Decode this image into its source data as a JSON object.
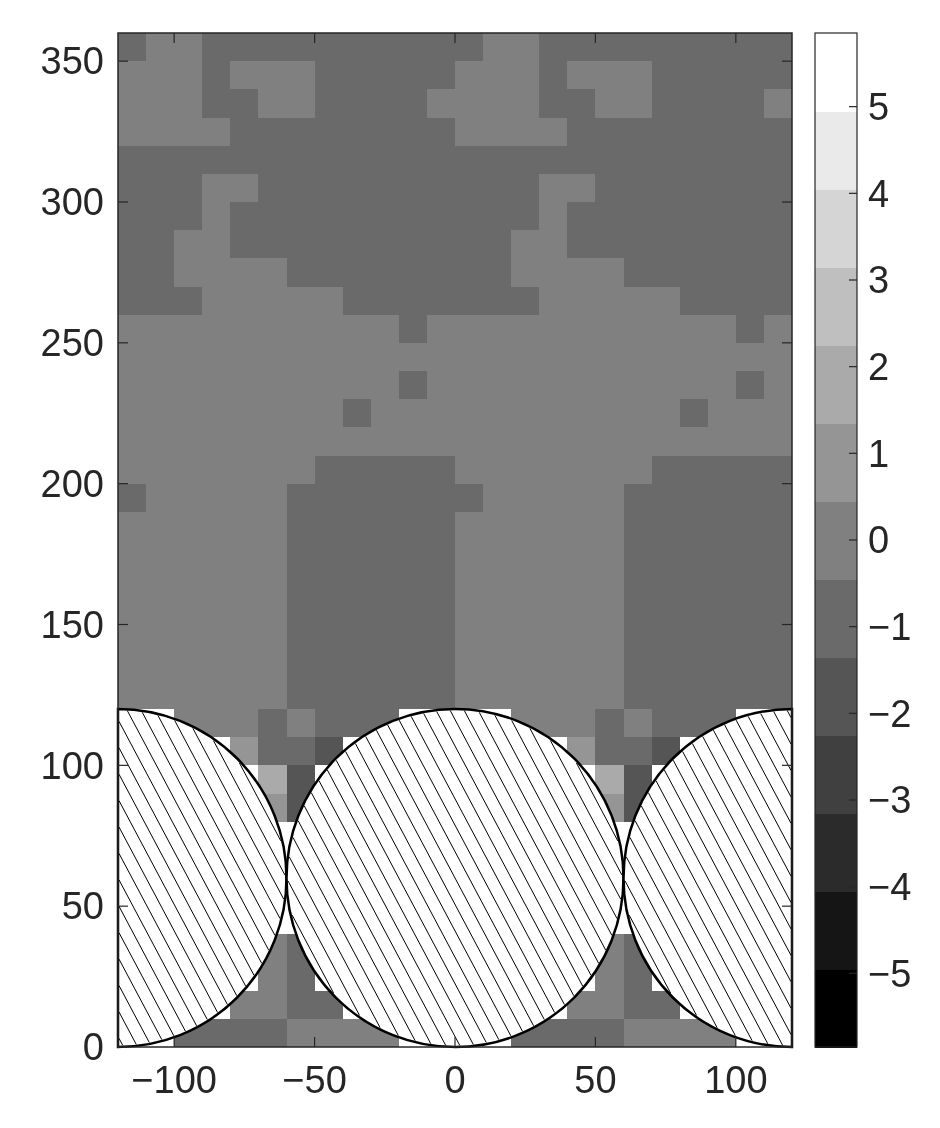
{
  "chart_data": {
    "type": "scatter",
    "marker": "square",
    "xlim": [
      -120,
      120
    ],
    "ylim": [
      0,
      360
    ],
    "xticks": [
      -100,
      -50,
      0,
      50,
      100
    ],
    "yticks": [
      0,
      50,
      100,
      150,
      200,
      250,
      300,
      350
    ],
    "clim": [
      -5.85,
      5.85
    ],
    "cticks": [
      -5,
      -4,
      -3,
      -2,
      -1,
      0,
      1,
      2,
      3,
      4,
      5
    ],
    "x": [
      -115,
      -105,
      -95,
      -85,
      -75,
      -65,
      -55,
      -45,
      -35,
      -25,
      -15,
      -5,
      5,
      15,
      25,
      35,
      45,
      55,
      65,
      75,
      85,
      95,
      105,
      115,
      -115,
      -105,
      -95,
      -85,
      -75,
      -65,
      -55,
      -45,
      -35,
      -25,
      -15,
      -5,
      5,
      15,
      25,
      35,
      45,
      55,
      65,
      75,
      85,
      95,
      105,
      115,
      -115,
      -105,
      -95,
      -85,
      -75,
      -65,
      -55,
      -45,
      -35,
      -25,
      -15,
      -5,
      5,
      15,
      25,
      35,
      45,
      55,
      65,
      75,
      85,
      95,
      105,
      115,
      -115,
      -105,
      -95,
      -85,
      -75,
      -65,
      -55,
      -45,
      -35,
      -25,
      -15,
      -5,
      5,
      15,
      25,
      35,
      45,
      55,
      65,
      75,
      85,
      95,
      105,
      115,
      -115,
      -105,
      -95,
      -85,
      -75,
      -65,
      -55,
      -45,
      -35,
      -25,
      -15,
      -5,
      5,
      15,
      25,
      35,
      45,
      55,
      65,
      75,
      85,
      95,
      105,
      115,
      -115,
      -105,
      -95,
      -85,
      -75,
      -65,
      -55,
      -45,
      -35,
      -25,
      -15,
      -5,
      5,
      15,
      25,
      35,
      45,
      55,
      65,
      75,
      85,
      95,
      105,
      115,
      -115,
      -105,
      -95,
      -85,
      -75,
      -65,
      -55,
      -45,
      -35,
      -25,
      -15,
      -5,
      5,
      15,
      25,
      35,
      45,
      55,
      65,
      75,
      85,
      95,
      105,
      115,
      -115,
      -105,
      -95,
      -85,
      -75,
      -65,
      -55,
      -45,
      -35,
      -25,
      -15,
      -5,
      5,
      15,
      25,
      35,
      45,
      55,
      65,
      75,
      85,
      95,
      105,
      115,
      -115,
      -105,
      -95,
      -85,
      -75,
      -65,
      -55,
      -45,
      -35,
      -25,
      -15,
      -5,
      5,
      15,
      25,
      35,
      45,
      55,
      65,
      75,
      85,
      95,
      105,
      115,
      -115,
      -105,
      -95,
      -85,
      -75,
      -65,
      -55,
      -45,
      -35,
      -25,
      -15,
      -5,
      5,
      15,
      25,
      35,
      45,
      55,
      65,
      75,
      85,
      95,
      105,
      115,
      -115,
      -105,
      -95,
      -85,
      -75,
      -65,
      -55,
      -45,
      -35,
      -25,
      -15,
      -5,
      5,
      15,
      25,
      35,
      45,
      55,
      65,
      75,
      85,
      95,
      105,
      115,
      -115,
      -105,
      -95,
      -85,
      -75,
      -65,
      -55,
      -45,
      -35,
      -25,
      -15,
      -5,
      5,
      15,
      25,
      35,
      45,
      55,
      65,
      75,
      85,
      95,
      105,
      115,
      -115,
      -105,
      -95,
      -85,
      -75,
      -65,
      -55,
      -45,
      -35,
      -25,
      -15,
      -5,
      5,
      15,
      25,
      35,
      45,
      55,
      65,
      75,
      85,
      95,
      105,
      115,
      -115,
      -105,
      -95,
      -85,
      -75,
      -65,
      -55,
      -45,
      -35,
      -25,
      -15,
      -5,
      5,
      15,
      25,
      35,
      45,
      55,
      65,
      75,
      85,
      95,
      105,
      115,
      -115,
      -105,
      -95,
      -85,
      -75,
      -65,
      -55,
      -45,
      -35,
      -25,
      -15,
      -5,
      5,
      15,
      25,
      35,
      45,
      55,
      65,
      75,
      85,
      95,
      105,
      115,
      -115,
      -105,
      -95,
      -85,
      -75,
      -65,
      -55,
      -45,
      -35,
      -25,
      -15,
      -5,
      5,
      15,
      25,
      35,
      45,
      55,
      65,
      75,
      85,
      95,
      105,
      115,
      -115,
      -105,
      -95,
      -85,
      -75,
      -65,
      -55,
      -45,
      -35,
      -25,
      -15,
      -5,
      5,
      15,
      25,
      35,
      45,
      55,
      65,
      75,
      85,
      95,
      105,
      115,
      -115,
      -105,
      -95,
      -85,
      -75,
      -65,
      -55,
      -45,
      -35,
      -25,
      -15,
      -5,
      5,
      15,
      25,
      35,
      45,
      55,
      65,
      75,
      85,
      95,
      105,
      115,
      -115,
      -105,
      -95,
      -85,
      -75,
      -65,
      -55,
      -45,
      -35,
      -25,
      -15,
      -5,
      5,
      15,
      25,
      35,
      45,
      55,
      65,
      75,
      85,
      95,
      105,
      115,
      -115,
      -105,
      -95,
      -85,
      -75,
      -65,
      -55,
      -45,
      -35,
      -25,
      -15,
      -5,
      5,
      15,
      25,
      35,
      45,
      55,
      65,
      75,
      85,
      95,
      105,
      115,
      -115,
      -105,
      -95,
      -85,
      -75,
      -65,
      -55,
      -45,
      -35,
      -25,
      -15,
      -5,
      5,
      15,
      25,
      35,
      45,
      55,
      65,
      75,
      85,
      95,
      105,
      115,
      -115,
      -105,
      -95,
      -85,
      -75,
      -65,
      -55,
      -45,
      -35,
      -25,
      -15,
      -5,
      5,
      15,
      25,
      35,
      45,
      55,
      65,
      75,
      85,
      95,
      105,
      115,
      -115,
      -105,
      -95,
      -85,
      -75,
      -65,
      -55,
      -45,
      -35,
      -25,
      -15,
      -5,
      5,
      15,
      25,
      35,
      45,
      55,
      65,
      75,
      85,
      95,
      105,
      115,
      -115,
      -105,
      -95,
      -85,
      -75,
      -65,
      -55,
      -45,
      -35,
      -25,
      -15,
      -5,
      5,
      15,
      25,
      35,
      45,
      55,
      65,
      75,
      85,
      95,
      105,
      115,
      -95,
      -85,
      -75,
      -65,
      -55,
      -45,
      -35,
      -25,
      25,
      35,
      45,
      55,
      65,
      75,
      85,
      95,
      -75,
      -65,
      -55,
      -45,
      45,
      55,
      65,
      75,
      -65,
      -55,
      55,
      65,
      -65,
      -55,
      55,
      65,
      -65,
      -55,
      55,
      65,
      -65,
      -55,
      55,
      65,
      -75,
      -65,
      -55,
      -45,
      45,
      55,
      65,
      75,
      -95,
      -85,
      -75,
      -65,
      -55,
      -45,
      -35,
      -25,
      25,
      35,
      45,
      55,
      65,
      75,
      85,
      95
    ],
    "values": [
      355,
      355,
      355,
      355,
      355,
      355,
      355,
      355,
      355,
      355,
      355,
      355,
      355,
      355,
      355,
      355,
      355,
      355,
      355,
      355,
      355,
      355,
      355,
      355,
      345,
      345,
      345,
      345,
      345,
      345,
      345,
      345,
      345,
      345,
      345,
      345,
      345,
      345,
      345,
      345,
      345,
      345,
      345,
      345,
      345,
      345,
      345,
      345,
      335,
      335,
      335,
      335,
      335,
      335,
      335,
      335,
      335,
      335,
      335,
      335,
      335,
      335,
      335,
      335,
      335,
      335,
      335,
      335,
      335,
      335,
      335,
      335,
      325,
      325,
      325,
      325,
      325,
      325,
      325,
      325,
      325,
      325,
      325,
      325,
      325,
      325,
      325,
      325,
      325,
      325,
      325,
      325,
      325,
      325,
      325,
      325,
      315,
      315,
      315,
      315,
      315,
      315,
      315,
      315,
      315,
      315,
      315,
      315,
      315,
      315,
      315,
      315,
      315,
      315,
      315,
      315,
      315,
      315,
      315,
      315,
      305,
      305,
      305,
      305,
      305,
      305,
      305,
      305,
      305,
      305,
      305,
      305,
      305,
      305,
      305,
      305,
      305,
      305,
      305,
      305,
      305,
      305,
      305,
      305,
      295,
      295,
      295,
      295,
      295,
      295,
      295,
      295,
      295,
      295,
      295,
      295,
      295,
      295,
      295,
      295,
      295,
      295,
      295,
      295,
      295,
      295,
      295,
      295,
      285,
      285,
      285,
      285,
      285,
      285,
      285,
      285,
      285,
      285,
      285,
      285,
      285,
      285,
      285,
      285,
      285,
      285,
      285,
      285,
      285,
      285,
      285,
      285,
      275,
      275,
      275,
      275,
      275,
      275,
      275,
      275,
      275,
      275,
      275,
      275,
      275,
      275,
      275,
      275,
      275,
      275,
      275,
      275,
      275,
      275,
      275,
      275,
      265,
      265,
      265,
      265,
      265,
      265,
      265,
      265,
      265,
      265,
      265,
      265,
      265,
      265,
      265,
      265,
      265,
      265,
      265,
      265,
      265,
      265,
      265,
      265,
      255,
      255,
      255,
      255,
      255,
      255,
      255,
      255,
      255,
      255,
      255,
      255,
      255,
      255,
      255,
      255,
      255,
      255,
      255,
      255,
      255,
      255,
      255,
      255,
      245,
      245,
      245,
      245,
      245,
      245,
      245,
      245,
      245,
      245,
      245,
      245,
      245,
      245,
      245,
      245,
      245,
      245,
      245,
      245,
      245,
      245,
      245,
      245,
      235,
      235,
      235,
      235,
      235,
      235,
      235,
      235,
      235,
      235,
      235,
      235,
      235,
      235,
      235,
      235,
      235,
      235,
      235,
      235,
      235,
      235,
      235,
      235,
      225,
      225,
      225,
      225,
      225,
      225,
      225,
      225,
      225,
      225,
      225,
      225,
      225,
      225,
      225,
      225,
      225,
      225,
      225,
      225,
      225,
      225,
      225,
      225,
      215,
      215,
      215,
      215,
      215,
      215,
      215,
      215,
      215,
      215,
      215,
      215,
      215,
      215,
      215,
      215,
      215,
      215,
      215,
      215,
      215,
      215,
      215,
      215,
      205,
      205,
      205,
      205,
      205,
      205,
      205,
      205,
      205,
      205,
      205,
      205,
      205,
      205,
      205,
      205,
      205,
      205,
      205,
      205,
      205,
      205,
      205,
      205,
      195,
      195,
      195,
      195,
      195,
      195,
      195,
      195,
      195,
      195,
      195,
      195,
      195,
      195,
      195,
      195,
      195,
      195,
      195,
      195,
      195,
      195,
      195,
      195,
      185,
      185,
      185,
      185,
      185,
      185,
      185,
      185,
      185,
      185,
      185,
      185,
      185,
      185,
      185,
      185,
      185,
      185,
      185,
      185,
      185,
      185,
      185,
      185,
      175,
      175,
      175,
      175,
      175,
      175,
      175,
      175,
      175,
      175,
      175,
      175,
      175,
      175,
      175,
      175,
      175,
      175,
      175,
      175,
      175,
      175,
      175,
      175,
      165,
      165,
      165,
      165,
      165,
      165,
      165,
      165,
      165,
      165,
      165,
      165,
      165,
      165,
      165,
      165,
      165,
      165,
      165,
      165,
      165,
      165,
      165,
      165,
      155,
      155,
      155,
      155,
      155,
      155,
      155,
      155,
      155,
      155,
      155,
      155,
      155,
      155,
      155,
      155,
      155,
      155,
      155,
      155,
      155,
      155,
      155,
      155,
      145,
      145,
      145,
      145,
      145,
      145,
      145,
      145,
      145,
      145,
      145,
      145,
      145,
      145,
      145,
      145,
      145,
      145,
      145,
      145,
      145,
      145,
      145,
      145,
      135,
      135,
      135,
      135,
      135,
      135,
      135,
      135,
      135,
      135,
      135,
      135,
      135,
      135,
      135,
      135,
      135,
      135,
      135,
      135,
      135,
      135,
      135,
      135,
      125,
      125,
      125,
      125,
      125,
      125,
      125,
      125,
      125,
      125,
      125,
      125,
      125,
      125,
      125,
      125,
      125,
      125,
      125,
      125,
      125,
      125,
      125,
      125,
      115,
      115,
      115,
      115,
      115,
      115,
      115,
      115,
      115,
      115,
      115,
      115,
      115,
      115,
      115,
      115,
      105,
      105,
      105,
      105,
      105,
      105,
      105,
      105,
      95,
      95,
      95,
      95,
      85,
      85,
      85,
      85,
      35,
      35,
      35,
      35,
      25,
      25,
      25,
      25,
      15,
      15,
      15,
      15,
      15,
      15,
      15,
      15,
      5,
      5,
      5,
      5,
      5,
      5,
      5,
      5,
      5,
      5,
      5,
      5,
      5,
      5,
      5,
      5
    ],
    "cvalues": [
      -1,
      0,
      0,
      -1,
      -1,
      -1,
      -1,
      -1,
      -1,
      -1,
      -1,
      -1,
      -1,
      0,
      0,
      -1,
      -1,
      -1,
      -1,
      -1,
      -1,
      -1,
      -1,
      -1,
      0,
      0,
      0,
      -1,
      0,
      0,
      0,
      -1,
      -1,
      -1,
      -1,
      -1,
      0,
      0,
      0,
      -1,
      0,
      0,
      0,
      -1,
      -1,
      -1,
      -1,
      -1,
      0,
      0,
      0,
      -1,
      -1,
      0,
      0,
      -1,
      -1,
      -1,
      -1,
      0,
      0,
      0,
      0,
      -1,
      -1,
      0,
      0,
      -1,
      -1,
      -1,
      -1,
      0,
      0,
      0,
      0,
      0,
      -1,
      -1,
      -1,
      -1,
      -1,
      -1,
      -1,
      -1,
      0,
      0,
      0,
      0,
      -1,
      -1,
      -1,
      -1,
      -1,
      -1,
      -1,
      -1,
      -1,
      -1,
      -1,
      -1,
      -1,
      -1,
      -1,
      -1,
      -1,
      -1,
      -1,
      -1,
      -1,
      -1,
      -1,
      -1,
      -1,
      -1,
      -1,
      -1,
      -1,
      -1,
      -1,
      -1,
      -1,
      -1,
      -1,
      0,
      0,
      -1,
      -1,
      -1,
      -1,
      -1,
      -1,
      -1,
      -1,
      -1,
      -1,
      0,
      0,
      -1,
      -1,
      -1,
      -1,
      -1,
      -1,
      -1,
      -1,
      -1,
      -1,
      0,
      -1,
      -1,
      -1,
      -1,
      -1,
      -1,
      -1,
      -1,
      -1,
      -1,
      -1,
      0,
      -1,
      -1,
      -1,
      -1,
      -1,
      -1,
      -1,
      -1,
      -1,
      -1,
      0,
      0,
      -1,
      -1,
      -1,
      -1,
      -1,
      -1,
      -1,
      -1,
      -1,
      -1,
      0,
      0,
      -1,
      -1,
      -1,
      -1,
      -1,
      -1,
      -1,
      -1,
      -1,
      -1,
      0,
      0,
      0,
      0,
      -1,
      -1,
      -1,
      -1,
      -1,
      -1,
      -1,
      -1,
      0,
      0,
      0,
      0,
      -1,
      -1,
      -1,
      -1,
      -1,
      -1,
      -1,
      -1,
      -1,
      0,
      0,
      0,
      0,
      0,
      -1,
      -1,
      -1,
      -1,
      -1,
      -1,
      -1,
      0,
      0,
      0,
      0,
      0,
      -1,
      -1,
      -1,
      -1,
      0,
      0,
      0,
      0,
      0,
      0,
      0,
      0,
      0,
      0,
      -1,
      0,
      0,
      0,
      0,
      0,
      0,
      0,
      0,
      0,
      0,
      0,
      -1,
      0,
      0,
      0,
      0,
      0,
      0,
      0,
      0,
      0,
      0,
      0,
      0,
      0,
      0,
      0,
      0,
      0,
      0,
      0,
      0,
      0,
      0,
      0,
      0,
      0,
      0,
      0,
      0,
      0,
      0,
      0,
      0,
      0,
      0,
      0,
      -1,
      0,
      0,
      0,
      0,
      0,
      0,
      0,
      0,
      0,
      0,
      0,
      -1,
      0,
      0,
      0,
      0,
      0,
      0,
      0,
      0,
      0,
      -1,
      0,
      0,
      0,
      0,
      0,
      0,
      0,
      0,
      0,
      0,
      0,
      -1,
      0,
      0,
      0,
      0,
      0,
      0,
      0,
      0,
      0,
      0,
      0,
      0,
      0,
      0,
      0,
      0,
      0,
      0,
      0,
      0,
      0,
      0,
      0,
      0,
      0,
      0,
      0,
      0,
      0,
      0,
      0,
      0,
      0,
      0,
      -1,
      -1,
      -1,
      -1,
      -1,
      0,
      0,
      0,
      0,
      0,
      0,
      0,
      -1,
      -1,
      -1,
      -1,
      -1,
      -1,
      0,
      0,
      0,
      0,
      0,
      -1,
      -1,
      -1,
      -1,
      -1,
      -1,
      -1,
      0,
      0,
      0,
      0,
      0,
      -1,
      -1,
      -1,
      -1,
      -1,
      -1,
      0,
      0,
      0,
      0,
      0,
      0,
      -1,
      -1,
      -1,
      -1,
      -1,
      -1,
      0,
      0,
      0,
      0,
      0,
      0,
      -1,
      -1,
      -1,
      -1,
      -1,
      -1,
      0,
      0,
      0,
      0,
      0,
      0,
      -1,
      -1,
      -1,
      -1,
      -1,
      -1,
      0,
      0,
      0,
      0,
      0,
      0,
      -1,
      -1,
      -1,
      -1,
      -1,
      -1,
      0,
      0,
      0,
      0,
      0,
      0,
      -1,
      -1,
      -1,
      -1,
      -1,
      -1,
      0,
      0,
      0,
      0,
      0,
      0,
      -1,
      -1,
      -1,
      -1,
      -1,
      -1,
      0,
      0,
      0,
      0,
      0,
      0,
      -1,
      -1,
      -1,
      -1,
      -1,
      -1,
      0,
      0,
      0,
      0,
      0,
      0,
      -1,
      -1,
      -1,
      -1,
      -1,
      -1,
      0,
      0,
      0,
      0,
      0,
      0,
      -1,
      -1,
      -1,
      -1,
      -1,
      -1,
      0,
      0,
      0,
      0,
      0,
      0,
      -1,
      -1,
      -1,
      -1,
      -1,
      -1,
      0,
      0,
      0,
      0,
      0,
      0,
      -1,
      -1,
      -1,
      -1,
      -1,
      -1,
      0,
      0,
      0,
      0,
      0,
      0,
      -1,
      -1,
      -1,
      -1,
      -1,
      -1,
      0,
      0,
      0,
      0,
      0,
      0,
      -1,
      -1,
      -1,
      -1,
      -1,
      -1,
      0,
      0,
      0,
      0,
      0,
      0,
      -1,
      -1,
      -1,
      -1,
      -1,
      -1,
      0,
      0,
      0,
      -1,
      0,
      -1,
      -1,
      -1,
      0,
      0,
      0,
      -1,
      0,
      -1,
      -1,
      -1,
      1,
      -1,
      -1,
      -2,
      1,
      -1,
      -1,
      -2,
      2,
      -2,
      2,
      -2,
      1,
      -2,
      1,
      -2,
      0,
      -1,
      0,
      -1,
      0,
      -1,
      0,
      -1,
      0,
      0,
      -1,
      -1,
      0,
      0,
      -1,
      -1,
      -1,
      -1,
      -1,
      -1,
      0,
      0,
      0,
      0,
      -1,
      -1,
      -1,
      -1,
      0,
      0,
      0,
      0
    ]
  }
}
